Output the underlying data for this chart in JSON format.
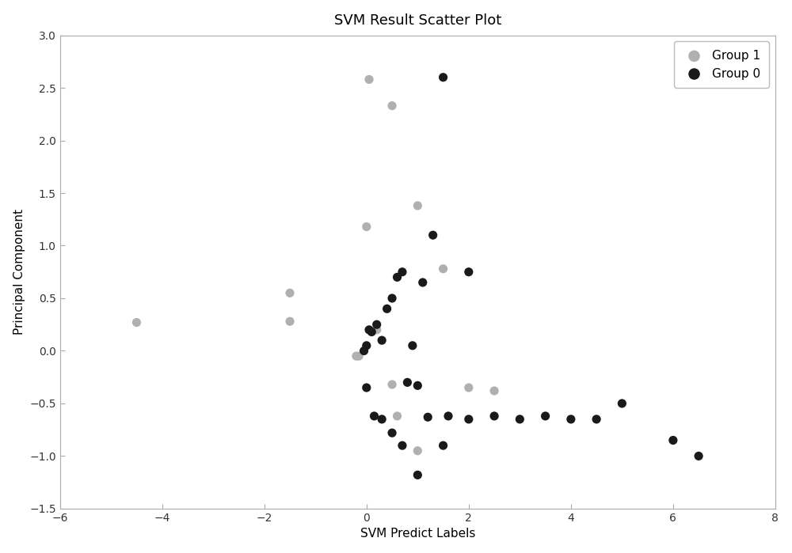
{
  "title": "SVM Result Scatter Plot",
  "xlabel": "SVM Predict Labels",
  "ylabel": "Principal Component",
  "xlim": [
    -6,
    8
  ],
  "ylim": [
    -1.5,
    3
  ],
  "xticks": [
    -6,
    -4,
    -2,
    0,
    2,
    4,
    6,
    8
  ],
  "yticks": [
    -1.5,
    -1.0,
    -0.5,
    0.0,
    0.5,
    1.0,
    1.5,
    2.0,
    2.5,
    3.0
  ],
  "group0_x": [
    -0.05,
    0.0,
    0.05,
    0.1,
    0.2,
    0.3,
    0.4,
    0.5,
    0.6,
    0.7,
    0.8,
    0.9,
    1.0,
    1.1,
    1.2,
    1.3,
    1.5,
    1.6,
    2.0,
    2.5,
    3.0,
    3.5,
    4.0,
    4.5,
    5.0,
    6.0,
    6.5,
    0.0,
    0.15,
    0.3,
    0.5,
    0.7,
    1.0,
    1.5,
    2.0
  ],
  "group0_y": [
    0.0,
    0.05,
    0.2,
    0.18,
    0.25,
    0.1,
    0.4,
    0.5,
    0.7,
    0.75,
    -0.3,
    0.05,
    -0.33,
    0.65,
    -0.63,
    1.1,
    2.6,
    -0.62,
    0.75,
    -0.62,
    -0.65,
    -0.62,
    -0.65,
    -0.65,
    -0.5,
    -0.85,
    -1.0,
    -0.35,
    -0.62,
    -0.65,
    -0.78,
    -0.9,
    -1.18,
    -0.9,
    -0.65
  ],
  "group1_x": [
    -4.5,
    -1.5,
    -1.5,
    -0.2,
    -0.15,
    0.0,
    0.05,
    0.2,
    0.5,
    0.6,
    1.0,
    1.5,
    2.0,
    2.5,
    0.5,
    1.0
  ],
  "group1_y": [
    0.27,
    0.55,
    0.28,
    -0.05,
    -0.05,
    1.18,
    2.58,
    0.2,
    -0.32,
    -0.62,
    1.38,
    0.78,
    -0.35,
    -0.38,
    2.33,
    -0.95
  ],
  "group0_color": "#1a1a1a",
  "group1_color": "#b0b0b0",
  "group0_label": "Group 0",
  "group1_label": "Group 1",
  "marker_size": 65,
  "background_color": "#ffffff",
  "title_fontsize": 13,
  "label_fontsize": 11,
  "tick_fontsize": 10
}
